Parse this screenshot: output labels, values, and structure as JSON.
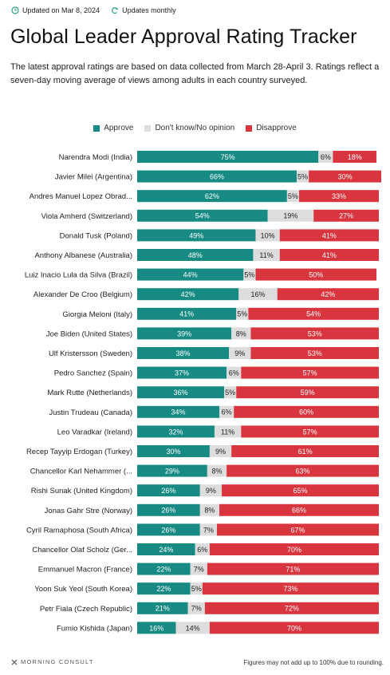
{
  "header": {
    "updated": "Updated on Mar 8, 2024",
    "frequency": "Updates monthly"
  },
  "title": "Global Leader Approval Rating Tracker",
  "subtitle": "The latest approval ratings are based on data collected from March 28-April 3. Ratings reflect a seven-day moving average of views among adults in each country surveyed.",
  "colors": {
    "approve": "#168a83",
    "neutral": "#dddddd",
    "disapprove": "#d9353e",
    "header_icon": "#2aa17a"
  },
  "chart_data": {
    "type": "bar",
    "orientation": "horizontal",
    "stacked": true,
    "legend": [
      "Approve",
      "Don't know/No opinion",
      "Disapprove"
    ],
    "legend_position": "top",
    "xlim": [
      0,
      100
    ],
    "categories": [
      "Narendra Modi (India)",
      "Javier Milei (Argentina)",
      "Andres Manuel Lopez Obrad...",
      "Viola Amherd (Switzerland)",
      "Donald Tusk (Poland)",
      "Anthony Albanese (Australia)",
      "Luiz Inacio Lula da Silva (Brazil)",
      "Alexander De Croo (Belgium)",
      "Giorgia Meloni (Italy)",
      "Joe Biden (United States)",
      "Ulf Kristersson (Sweden)",
      "Pedro Sanchez (Spain)",
      "Mark Rutte (Netherlands)",
      "Justin Trudeau (Canada)",
      "Leo Varadkar (Ireland)",
      "Recep Tayyip Erdogan (Turkey)",
      "Chancellor Karl Nehammer (...",
      "Rishi Sunak (United Kingdom)",
      "Jonas Gahr Stre (Norway)",
      "Cyril Ramaphosa (South Africa)",
      "Chancellor Olaf Scholz (Ger...",
      "Emmanuel Macron (France)",
      "Yoon Suk Yeol (South Korea)",
      "Petr Fiala (Czech Republic)",
      "Fumio Kishida (Japan)"
    ],
    "series": [
      {
        "name": "Approve",
        "values": [
          75,
          66,
          62,
          54,
          49,
          48,
          44,
          42,
          41,
          39,
          38,
          37,
          36,
          34,
          32,
          30,
          29,
          26,
          26,
          26,
          24,
          22,
          22,
          21,
          16
        ]
      },
      {
        "name": "Don't know/No opinion",
        "values": [
          6,
          5,
          5,
          19,
          10,
          11,
          5,
          16,
          5,
          8,
          9,
          6,
          5,
          6,
          11,
          9,
          8,
          9,
          8,
          7,
          6,
          7,
          5,
          7,
          14
        ]
      },
      {
        "name": "Disapprove",
        "values": [
          18,
          30,
          33,
          27,
          41,
          41,
          50,
          42,
          54,
          53,
          53,
          57,
          59,
          60,
          57,
          61,
          63,
          65,
          66,
          67,
          70,
          71,
          73,
          72,
          70
        ]
      }
    ]
  },
  "footer": {
    "logo": "MORNING CONSULT",
    "note": "Figures may not add up to 100% due to rounding."
  }
}
